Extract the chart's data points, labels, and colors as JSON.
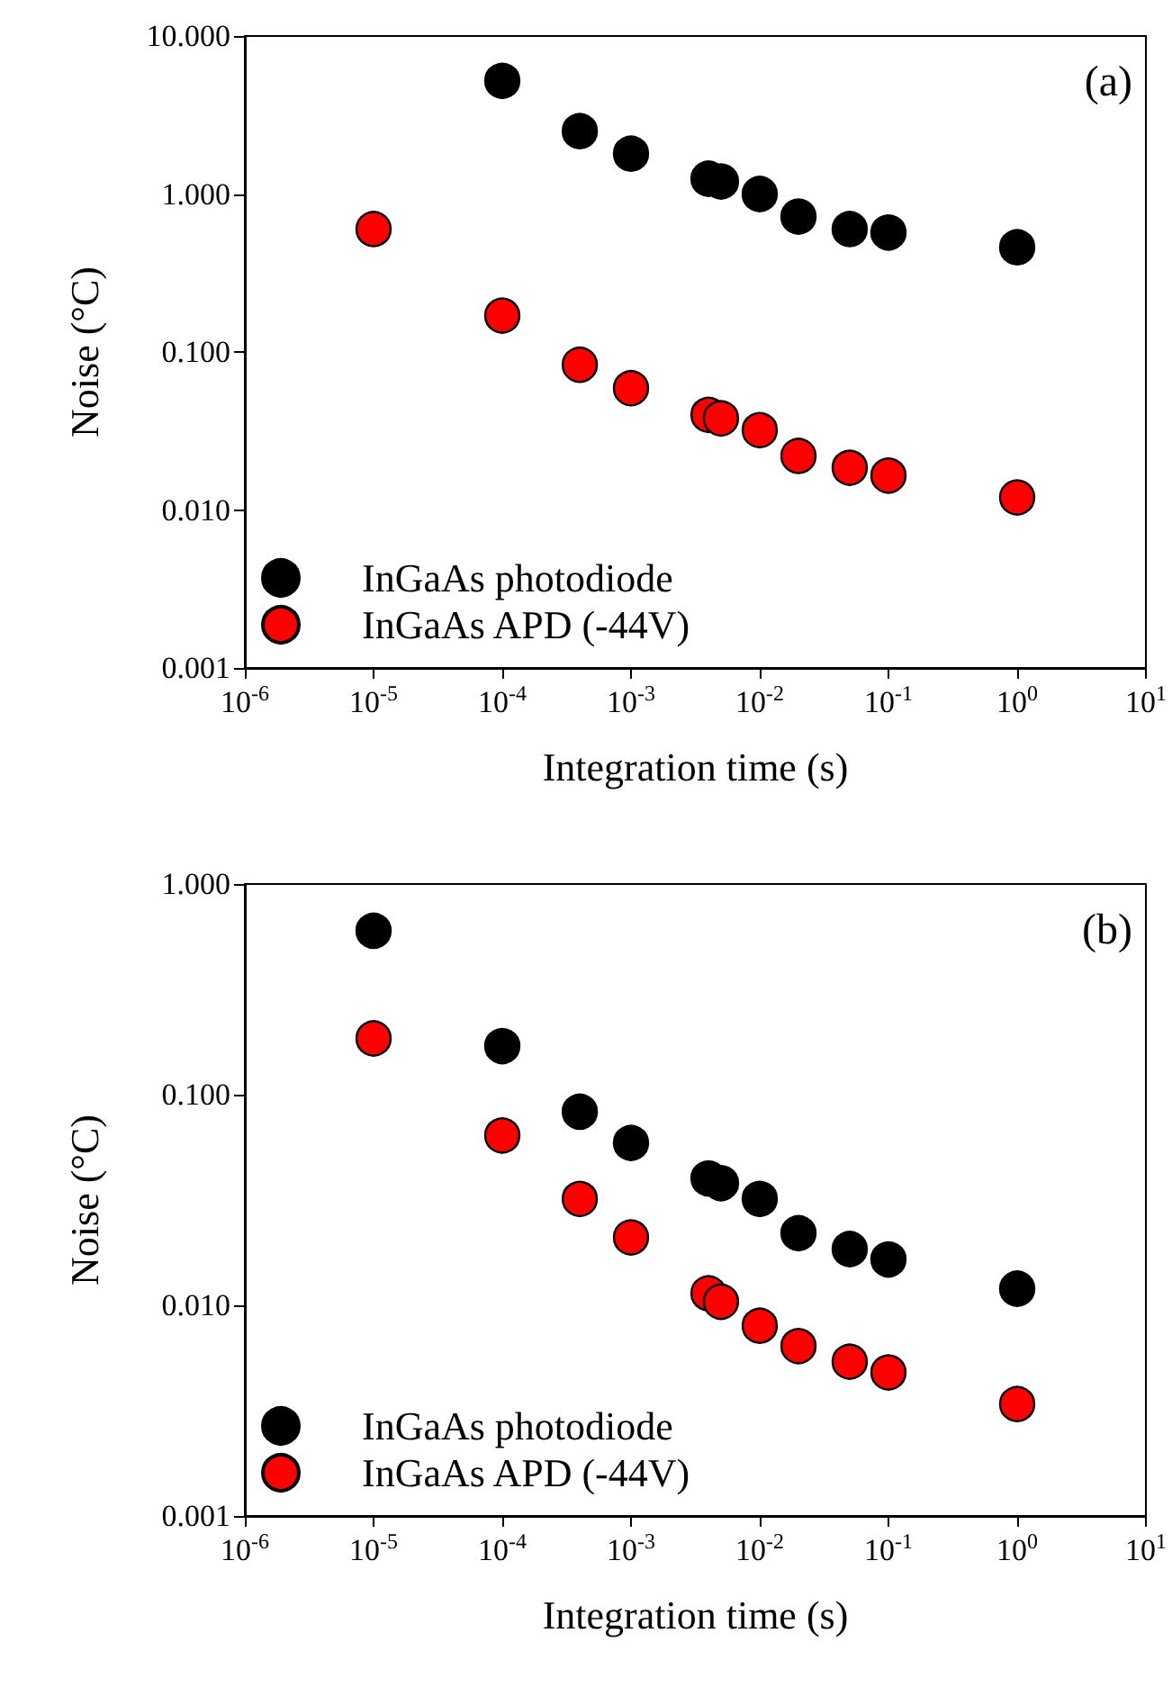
{
  "chart_data": [
    {
      "type": "scatter",
      "xlabel": "Integration time (s)",
      "ylabel": "Noise (°C)",
      "annotations": [
        "(a)"
      ],
      "log": "xy",
      "grid": false,
      "legend": "bottom left",
      "marker": "circle",
      "xlim": [
        1e-06,
        10
      ],
      "ylim": [
        0.001,
        10
      ],
      "xticks": [
        {
          "value": 1e-06,
          "label": "10$^{-6}$"
        },
        {
          "value": 1e-05,
          "label": "10$^{-5}$"
        },
        {
          "value": 0.0001,
          "label": "10$^{-4}$"
        },
        {
          "value": 0.001,
          "label": "10$^{-3}$"
        },
        {
          "value": 0.01,
          "label": "10$^{-2}$"
        },
        {
          "value": 0.1,
          "label": "10$^{-1}$"
        },
        {
          "value": 1,
          "label": "10$^{0}$"
        },
        {
          "value": 10,
          "label": "10$^{1}$"
        }
      ],
      "yticks": [
        {
          "value": 0.001,
          "label": "0.001"
        },
        {
          "value": 0.01,
          "label": "0.010"
        },
        {
          "value": 0.1,
          "label": "0.100"
        },
        {
          "value": 1,
          "label": "1.000"
        },
        {
          "value": 10,
          "label": "10.000"
        }
      ],
      "series": [
        {
          "name": "InGaAs photodiode",
          "color": "#000000",
          "x": [
            0.0001,
            0.0004,
            0.001,
            0.004,
            0.005,
            0.01,
            0.02,
            0.05,
            0.1,
            1
          ],
          "values": [
            5.2,
            2.5,
            1.8,
            1.25,
            1.2,
            1.0,
            0.72,
            0.6,
            0.57,
            0.46
          ]
        },
        {
          "name": "InGaAs APD (-44V)",
          "color": "#ff0000",
          "x": [
            1e-05,
            0.0001,
            0.0004,
            0.001,
            0.004,
            0.005,
            0.01,
            0.02,
            0.05,
            0.1,
            1
          ],
          "values": [
            0.6,
            0.17,
            0.083,
            0.059,
            0.04,
            0.038,
            0.032,
            0.022,
            0.0185,
            0.0165,
            0.012
          ]
        }
      ]
    },
    {
      "type": "scatter",
      "xlabel": "Integration time (s)",
      "ylabel": "Noise (°C)",
      "annotations": [
        "(b)"
      ],
      "log": "xy",
      "grid": false,
      "legend": "bottom left",
      "marker": "circle",
      "xlim": [
        1e-06,
        10
      ],
      "ylim": [
        0.001,
        1
      ],
      "xticks": [
        {
          "value": 1e-06,
          "label": "10$^{-6}$"
        },
        {
          "value": 1e-05,
          "label": "10$^{-5}$"
        },
        {
          "value": 0.0001,
          "label": "10$^{-4}$"
        },
        {
          "value": 0.001,
          "label": "10$^{-3}$"
        },
        {
          "value": 0.01,
          "label": "10$^{-2}$"
        },
        {
          "value": 0.1,
          "label": "10$^{-1}$"
        },
        {
          "value": 1,
          "label": "10$^{0}$"
        },
        {
          "value": 10,
          "label": "10$^{1}$"
        }
      ],
      "yticks": [
        {
          "value": 0.001,
          "label": "0.001"
        },
        {
          "value": 0.01,
          "label": "0.010"
        },
        {
          "value": 0.1,
          "label": "0.100"
        },
        {
          "value": 1,
          "label": "1.000"
        }
      ],
      "series": [
        {
          "name": "InGaAs photodiode",
          "color": "#000000",
          "x": [
            1e-05,
            0.0001,
            0.0004,
            0.001,
            0.004,
            0.005,
            0.01,
            0.02,
            0.05,
            0.1,
            1
          ],
          "values": [
            0.6,
            0.17,
            0.083,
            0.059,
            0.04,
            0.038,
            0.032,
            0.022,
            0.0185,
            0.0165,
            0.012
          ]
        },
        {
          "name": "InGaAs APD (-44V)",
          "color": "#ff0000",
          "x": [
            1e-05,
            0.0001,
            0.0004,
            0.001,
            0.004,
            0.005,
            0.01,
            0.02,
            0.05,
            0.1,
            1
          ],
          "values": [
            0.185,
            0.064,
            0.032,
            0.021,
            0.0114,
            0.0104,
            0.008,
            0.0064,
            0.0054,
            0.0048,
            0.0034
          ]
        }
      ]
    }
  ]
}
